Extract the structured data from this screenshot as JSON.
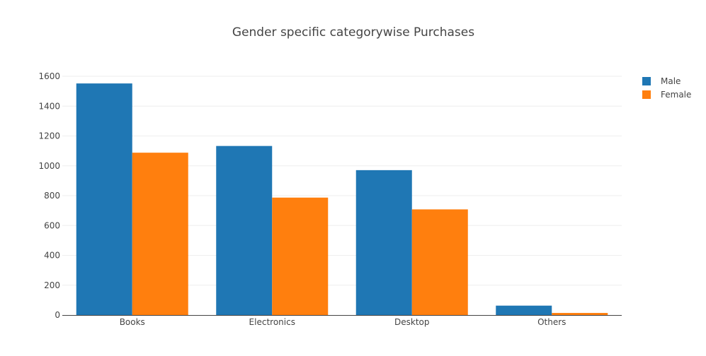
{
  "chart_data": {
    "type": "bar",
    "title": "Gender specific categorywise Purchases",
    "xlabel": "",
    "ylabel": "",
    "categories": [
      "Books",
      "Electronics",
      "Desktop",
      "Others"
    ],
    "series": [
      {
        "name": "Male",
        "color": "#1f77b4",
        "values": [
          1552,
          1133,
          971,
          63
        ]
      },
      {
        "name": "Female",
        "color": "#ff7f0e",
        "values": [
          1088,
          787,
          708,
          14
        ]
      }
    ],
    "ylim": [
      0,
      1600
    ],
    "yticks": [
      "0",
      "200",
      "400",
      "600",
      "800",
      "1000",
      "1200",
      "1400",
      "1600"
    ],
    "grid": true,
    "legend_position": "top-right"
  }
}
